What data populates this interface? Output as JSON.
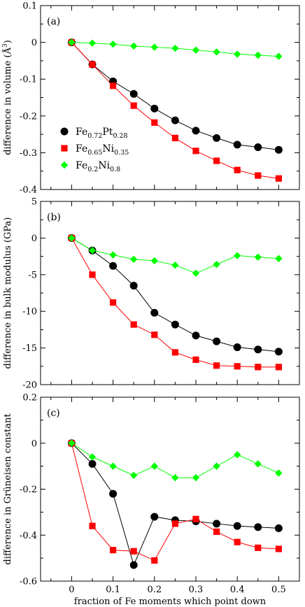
{
  "chart_data": [
    {
      "type": "line",
      "panel_label": "(a)",
      "ylabel": "difference in volume (Å³)",
      "ylabel_parts": [
        "difference in volume (",
        "Å",
        "3",
        ")"
      ],
      "xlabel": "",
      "xlim": [
        -0.075,
        0.55
      ],
      "ylim": [
        -0.4,
        0.1
      ],
      "xticks": [
        0,
        0.1,
        0.2,
        0.3,
        0.4,
        0.5
      ],
      "xtick_labels": [
        "0",
        "0.1",
        "0.2",
        "0.3",
        "0.4",
        "0.5"
      ],
      "yticks": [
        -0.4,
        -0.3,
        -0.2,
        -0.1,
        0,
        0.1
      ],
      "ytick_labels": [
        "-0.4",
        "-0.3",
        "-0.2",
        "-0.1",
        "0",
        "0.1"
      ],
      "show_xtick_labels": false,
      "grid": false,
      "legend": {
        "placement": "middle-left",
        "entries": [
          {
            "series": 0,
            "parts": [
              [
                "Fe",
                ""
              ],
              [
                "0.72",
                "sub"
              ],
              [
                "Pt",
                ""
              ],
              [
                "0.28",
                "sub"
              ]
            ]
          },
          {
            "series": 1,
            "parts": [
              [
                "Fe",
                ""
              ],
              [
                "0.65",
                "sub"
              ],
              [
                "Ni",
                ""
              ],
              [
                "0.35",
                "sub"
              ]
            ]
          },
          {
            "series": 2,
            "parts": [
              [
                "Fe",
                ""
              ],
              [
                "0.2",
                "sub"
              ],
              [
                "Ni",
                ""
              ],
              [
                "0.8",
                "sub"
              ]
            ]
          }
        ]
      },
      "series": [
        {
          "name": "Fe0.72Pt0.28",
          "marker": "circle",
          "color": "#000000",
          "x": [
            0,
            0.05,
            0.1,
            0.15,
            0.2,
            0.25,
            0.3,
            0.35,
            0.4,
            0.45,
            0.5
          ],
          "y": [
            0,
            -0.06,
            -0.106,
            -0.14,
            -0.18,
            -0.212,
            -0.24,
            -0.26,
            -0.278,
            -0.285,
            -0.292
          ]
        },
        {
          "name": "Fe0.65Ni0.35",
          "marker": "square",
          "color": "#ff0000",
          "x": [
            0,
            0.05,
            0.1,
            0.15,
            0.2,
            0.25,
            0.3,
            0.35,
            0.4,
            0.45,
            0.5
          ],
          "y": [
            0,
            -0.06,
            -0.118,
            -0.172,
            -0.218,
            -0.26,
            -0.295,
            -0.322,
            -0.347,
            -0.362,
            -0.37
          ]
        },
        {
          "name": "Fe0.2Ni0.8",
          "marker": "diamond",
          "color": "#00ff00",
          "x": [
            0,
            0.05,
            0.1,
            0.15,
            0.2,
            0.25,
            0.3,
            0.35,
            0.4,
            0.45,
            0.5
          ],
          "y": [
            0,
            -0.002,
            -0.005,
            -0.01,
            -0.013,
            -0.016,
            -0.021,
            -0.026,
            -0.032,
            -0.035,
            -0.038
          ]
        }
      ]
    },
    {
      "type": "line",
      "panel_label": "(b)",
      "ylabel": "difference in bulk modulus (GPa)",
      "xlabel": "",
      "xlim": [
        -0.075,
        0.55
      ],
      "ylim": [
        -20,
        5
      ],
      "xticks": [
        0,
        0.1,
        0.2,
        0.3,
        0.4,
        0.5
      ],
      "xtick_labels": [
        "0",
        "0.1",
        "0.2",
        "0.3",
        "0.4",
        "0.5"
      ],
      "yticks": [
        -20,
        -15,
        -10,
        -5,
        0,
        5
      ],
      "ytick_labels": [
        "-20",
        "-15",
        "-10",
        "-5",
        "0",
        "5"
      ],
      "show_xtick_labels": false,
      "grid": false,
      "series": [
        {
          "name": "Fe0.72Pt0.28",
          "marker": "circle",
          "color": "#000000",
          "x": [
            0,
            0.05,
            0.1,
            0.15,
            0.2,
            0.25,
            0.3,
            0.35,
            0.4,
            0.45,
            0.5
          ],
          "y": [
            0,
            -1.7,
            -3.8,
            -6.5,
            -10.2,
            -11.8,
            -13.3,
            -14.1,
            -14.9,
            -15.2,
            -15.5
          ]
        },
        {
          "name": "Fe0.65Ni0.35",
          "marker": "square",
          "color": "#ff0000",
          "x": [
            0,
            0.05,
            0.1,
            0.15,
            0.2,
            0.25,
            0.3,
            0.35,
            0.4,
            0.45,
            0.5
          ],
          "y": [
            0,
            -5.0,
            -8.8,
            -11.8,
            -13.2,
            -15.6,
            -16.6,
            -17.4,
            -17.5,
            -17.6,
            -17.6
          ]
        },
        {
          "name": "Fe0.2Ni0.8",
          "marker": "diamond",
          "color": "#00ff00",
          "x": [
            0,
            0.05,
            0.1,
            0.15,
            0.2,
            0.25,
            0.3,
            0.35,
            0.4,
            0.45,
            0.5
          ],
          "y": [
            0,
            -1.7,
            -2.3,
            -2.9,
            -3.1,
            -3.7,
            -4.8,
            -3.6,
            -2.4,
            -2.6,
            -2.8
          ]
        }
      ]
    },
    {
      "type": "line",
      "panel_label": "(c)",
      "ylabel": "difference in Grüneisen constant",
      "xlabel": "fraction of Fe moments which point down",
      "xlim": [
        -0.075,
        0.55
      ],
      "ylim": [
        -0.6,
        0.2
      ],
      "xticks": [
        0,
        0.1,
        0.2,
        0.3,
        0.4,
        0.5
      ],
      "xtick_labels": [
        "0",
        "0.1",
        "0.2",
        "0.3",
        "0.4",
        "0.5"
      ],
      "yticks": [
        -0.6,
        -0.4,
        -0.2,
        0,
        0.2
      ],
      "ytick_labels": [
        "-0.6",
        "-0.4",
        "-0.2",
        "0",
        "0.2"
      ],
      "show_xtick_labels": true,
      "grid": false,
      "series": [
        {
          "name": "Fe0.72Pt0.28",
          "marker": "circle",
          "color": "#000000",
          "x": [
            0,
            0.05,
            0.1,
            0.15,
            0.2,
            0.25,
            0.3,
            0.35,
            0.4,
            0.45,
            0.5
          ],
          "y": [
            0,
            -0.09,
            -0.22,
            -0.53,
            -0.32,
            -0.335,
            -0.34,
            -0.35,
            -0.36,
            -0.365,
            -0.37
          ]
        },
        {
          "name": "Fe0.65Ni0.35",
          "marker": "square",
          "color": "#ff0000",
          "x": [
            0,
            0.05,
            0.1,
            0.15,
            0.2,
            0.25,
            0.3,
            0.35,
            0.4,
            0.45,
            0.5
          ],
          "y": [
            0,
            -0.36,
            -0.465,
            -0.47,
            -0.51,
            -0.35,
            -0.33,
            -0.385,
            -0.43,
            -0.455,
            -0.46
          ]
        },
        {
          "name": "Fe0.2Ni0.8",
          "marker": "diamond",
          "color": "#00ff00",
          "x": [
            0,
            0.05,
            0.1,
            0.15,
            0.2,
            0.25,
            0.3,
            0.35,
            0.4,
            0.45,
            0.5
          ],
          "y": [
            0,
            -0.06,
            -0.1,
            -0.14,
            -0.1,
            -0.15,
            -0.15,
            -0.1,
            -0.05,
            -0.09,
            -0.13
          ]
        }
      ]
    }
  ]
}
